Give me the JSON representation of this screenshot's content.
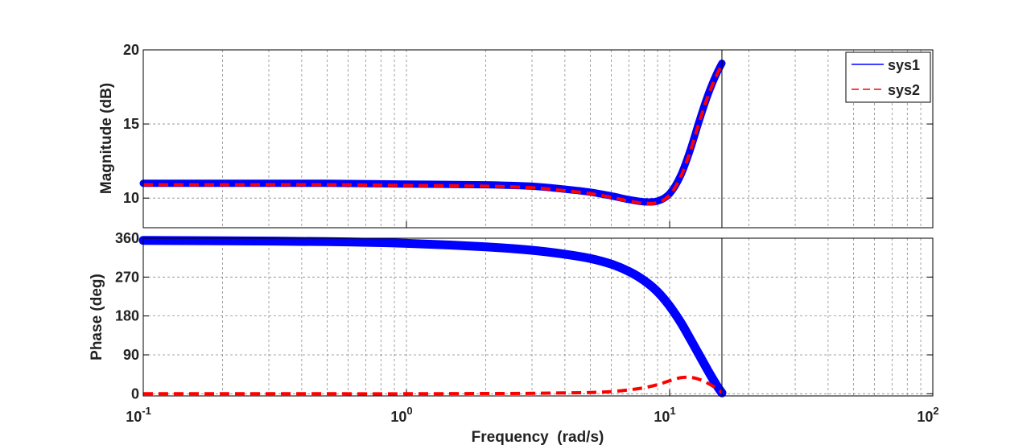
{
  "chart_data": [
    {
      "type": "line",
      "panel": "magnitude",
      "ylabel": "Magnitude (dB)",
      "xlabel": "",
      "xscale": "log",
      "xlim": [
        0.1,
        100
      ],
      "ylim": [
        8,
        20
      ],
      "yticks": [
        10,
        15,
        20
      ],
      "grid": true,
      "legend": {
        "placement": "top-right",
        "entries": [
          "sys1",
          "sys2"
        ]
      },
      "series": [
        {
          "name": "sys1",
          "color": "#0000ff",
          "style": "solid",
          "x": [
            0.1,
            0.2,
            0.5,
            1,
            2,
            3,
            4,
            5,
            6,
            7,
            8,
            9,
            10,
            11,
            12,
            13,
            14,
            15,
            15.8
          ],
          "y": [
            11.0,
            11.0,
            11.0,
            10.95,
            10.9,
            10.8,
            10.6,
            10.4,
            10.15,
            9.9,
            9.75,
            9.8,
            10.3,
            11.5,
            13.3,
            15.3,
            17.0,
            18.3,
            19.1
          ]
        },
        {
          "name": "sys2",
          "color": "#ff0000",
          "style": "dashed",
          "x": [
            0.1,
            0.2,
            0.5,
            1,
            2,
            3,
            4,
            5,
            6,
            7,
            8,
            9,
            10,
            11,
            12,
            13,
            14,
            15,
            15.8
          ],
          "y": [
            10.9,
            10.9,
            10.9,
            10.85,
            10.8,
            10.7,
            10.5,
            10.3,
            10.05,
            9.8,
            9.65,
            9.7,
            10.2,
            11.4,
            13.2,
            15.2,
            16.9,
            18.2,
            19.0
          ]
        }
      ],
      "cursor_x": 15.8
    },
    {
      "type": "line",
      "panel": "phase",
      "ylabel": "Phase (deg)",
      "xlabel": "Frequency  (rad/s)",
      "xscale": "log",
      "xlim": [
        0.1,
        100
      ],
      "ylim": [
        -5,
        360
      ],
      "yticks": [
        0,
        90,
        180,
        270,
        360
      ],
      "xticks": [
        {
          "value": 0.1,
          "base": "10",
          "exp": "-1"
        },
        {
          "value": 1,
          "base": "10",
          "exp": "0"
        },
        {
          "value": 10,
          "base": "10",
          "exp": "1"
        },
        {
          "value": 100,
          "base": "10",
          "exp": "2"
        }
      ],
      "grid": true,
      "series": [
        {
          "name": "sys1",
          "color": "#0000ff",
          "style": "solid",
          "x": [
            0.1,
            0.2,
            0.5,
            1,
            2,
            3,
            4,
            5,
            6,
            7,
            8,
            9,
            10,
            11,
            12,
            13,
            14,
            15,
            15.8
          ],
          "y": [
            355,
            354,
            352,
            348,
            340,
            332,
            323,
            313,
            300,
            283,
            262,
            236,
            203,
            166,
            126,
            88,
            53,
            22,
            2
          ]
        },
        {
          "name": "sys2",
          "color": "#ff0000",
          "style": "dashed",
          "x": [
            0.1,
            0.2,
            0.5,
            1,
            2,
            3,
            4,
            5,
            6,
            7,
            8,
            9,
            10,
            11,
            12,
            13,
            14,
            15,
            15.8
          ],
          "y": [
            0,
            0,
            0,
            0,
            0.5,
            1,
            2,
            3,
            5,
            9,
            14,
            21,
            30,
            37,
            38,
            33,
            24,
            13,
            3
          ]
        }
      ],
      "cursor_x": 15.8
    }
  ]
}
